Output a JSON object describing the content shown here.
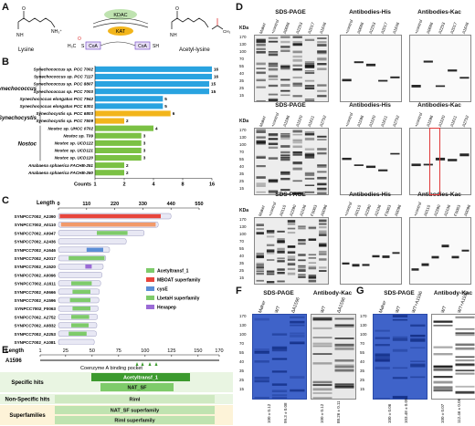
{
  "panels": [
    "A",
    "B",
    "C",
    "D",
    "E",
    "F",
    "G"
  ],
  "A": {
    "lysine_label": "Lysine",
    "acetyl_lysine_label": "Acetyl-lysine",
    "kdac": "KDAC",
    "kat": "KAT",
    "coa_left": "CoA",
    "coa_right": "CoA",
    "sh": "SH",
    "nh3": "NH₃⁺",
    "s_label": "S",
    "h3c": "H₃C",
    "nh_left": "N",
    "nh_right": "N",
    "h_left": "H",
    "h_right": "H",
    "o_left": "O",
    "o_right": "O",
    "o_acetyl": "O",
    "ch3": "CH₃",
    "star": "*"
  },
  "B": {
    "groups": [
      {
        "label": "Synechococcus",
        "start": 0,
        "end": 6
      },
      {
        "label": "Synechocystis",
        "start": 6,
        "end": 8
      },
      {
        "label": "Nostoc",
        "start": 8,
        "end": 13
      }
    ],
    "xaxis_label": "Counts",
    "ticks": [
      "1",
      "2",
      "4",
      "8",
      "16"
    ]
  },
  "chart_data": {
    "type": "bar",
    "categories": [
      "Synechococcus sp. PCC 7002",
      "Synechococcus sp. PCC 7117",
      "Synechococcus sp. PCC 8807",
      "Synechococcus sp. PCC 7003",
      "Synechococcus elongatus PCC 7942",
      "Synechococcus elongatus PCC 6301",
      "Synechocystis sp. PCC 6803",
      "Synechocystis sp. PCC 7509",
      "Nostoc sp. UHCC 0702",
      "Nostoc sp. T09",
      "Nostoc sp. UCD122",
      "Nostoc sp. UCD121",
      "Nostoc sp. UCD120",
      "Anabaena sphaerica FACHB-251",
      "Anabaena sphaerica FACHB-260"
    ],
    "values": [
      16,
      16,
      15,
      15,
      5,
      5,
      6,
      2,
      4,
      3,
      3,
      3,
      3,
      2,
      2
    ],
    "colors": [
      "#29a3e0",
      "#29a3e0",
      "#29a3e0",
      "#29a3e0",
      "#29a3e0",
      "#29a3e0",
      "#f2b51b",
      "#f2b51b",
      "#7bc144",
      "#7bc144",
      "#7bc144",
      "#7bc144",
      "#7bc144",
      "#7bc144",
      "#7bc144"
    ],
    "xlabel": "Counts",
    "xscale": "log2",
    "xlim": [
      1,
      16
    ]
  },
  "C": {
    "title": "Length",
    "ticks": [
      "0",
      "110",
      "220",
      "330",
      "440",
      "550"
    ],
    "max": 550,
    "proteins": [
      {
        "name": "SYNPCC7002_A2390",
        "len": 440,
        "doms": [
          {
            "s": 5,
            "e": 400,
            "c": "#e8453c"
          }
        ]
      },
      {
        "name": "SYNPCC7002_A0110",
        "len": 390,
        "doms": [
          {
            "s": 10,
            "e": 380,
            "c": "#f29a6a"
          }
        ]
      },
      {
        "name": "SYNPCC7002_A0947",
        "len": 335,
        "doms": [
          {
            "s": 150,
            "e": 270,
            "c": "#7ecb6a"
          }
        ]
      },
      {
        "name": "SYNPCC7002_A2436",
        "len": 265,
        "doms": []
      },
      {
        "name": "SYNPCC7002_A1646",
        "len": 200,
        "doms": [
          {
            "s": 110,
            "e": 175,
            "c": "#5b8ed6"
          }
        ]
      },
      {
        "name": "SYNPCC7002_A2017",
        "len": 185,
        "doms": [
          {
            "s": 40,
            "e": 180,
            "c": "#7ecb6a"
          }
        ]
      },
      {
        "name": "SYNPCC7002_A1520",
        "len": 175,
        "doms": [
          {
            "s": 105,
            "e": 130,
            "c": "#9b6bd6"
          }
        ]
      },
      {
        "name": "SYNPCC7002_A0096",
        "len": 170,
        "doms": []
      },
      {
        "name": "SYNPCC7002_A1611",
        "len": 165,
        "doms": [
          {
            "s": 50,
            "e": 130,
            "c": "#7ecb6a"
          }
        ]
      },
      {
        "name": "SYNPCC7002_A0666",
        "len": 160,
        "doms": [
          {
            "s": 55,
            "e": 125,
            "c": "#7ecb6a"
          }
        ]
      },
      {
        "name": "SYNPCC7002_A1596",
        "len": 158,
        "doms": [
          {
            "s": 45,
            "e": 125,
            "c": "#7ecb6a"
          }
        ]
      },
      {
        "name": "SYNPCC7002_F0063",
        "len": 155,
        "doms": [
          {
            "s": 55,
            "e": 125,
            "c": "#7ecb6a"
          }
        ]
      },
      {
        "name": "SYNPCC7002_A2752",
        "len": 152,
        "doms": [
          {
            "s": 50,
            "e": 120,
            "c": "#7ecb6a"
          }
        ]
      },
      {
        "name": "SYNPCC7002_A0832",
        "len": 150,
        "doms": [
          {
            "s": 50,
            "e": 118,
            "c": "#7ecb6a"
          }
        ]
      },
      {
        "name": "SYNPCC7002_A2253",
        "len": 148,
        "doms": [
          {
            "s": 40,
            "e": 110,
            "c": "#7ecb6a"
          }
        ]
      },
      {
        "name": "SYNPCC7002_A1081",
        "len": 140,
        "doms": []
      }
    ],
    "legend": [
      {
        "label": "Acetyltransf_1",
        "color": "#7ecb6a"
      },
      {
        "label": "MBOAT superfamily",
        "color": "#e8453c"
      },
      {
        "label": "cysE",
        "color": "#5b8ed6"
      },
      {
        "label": "LbetaH superfamily",
        "color": "#7ecb6a"
      },
      {
        "label": "Hexapep",
        "color": "#9b6bd6"
      }
    ]
  },
  "D": {
    "rows": [
      {
        "lanes": [
          "Maker",
          "+control",
          "A0666",
          "A2253",
          "A2017",
          "A1646"
        ]
      },
      {
        "lanes": [
          "Maker",
          "+control",
          "A1596",
          "A1520",
          "A1611",
          "A2752"
        ]
      },
      {
        "lanes": [
          "Maker",
          "+control",
          "A0110",
          "A2390",
          "A2436",
          "F0063",
          "A0096"
        ]
      }
    ],
    "titles": [
      "SDS-PAGE",
      "Antibodies-His",
      "Antibodies-Kac"
    ],
    "kda": "KDa",
    "markers": [
      "170",
      "130",
      "100",
      "70",
      "55",
      "40",
      "35",
      "25",
      "15"
    ]
  },
  "E": {
    "title": "Length",
    "ticks": [
      "1",
      "25",
      "50",
      "75",
      "100",
      "125",
      "150",
      "170"
    ],
    "protein": "A1596",
    "coa_label": "Coenzyme A binding pocket",
    "rows": [
      {
        "label": "Specific hits",
        "items": [
          "Acetyltransf_1",
          "NAT_SF"
        ]
      },
      {
        "label": "Non-Specific hits",
        "items": [
          "RimI"
        ]
      },
      {
        "label": "Superfamilies",
        "items": [
          "NAT_SF superfamily",
          "RimI superfamily"
        ]
      }
    ]
  },
  "F": {
    "title_left": "SDS-PAGE",
    "title_right": "Antibody-Kac",
    "lanes_left": [
      "Maker",
      "WT",
      "ΔA1596"
    ],
    "lanes_right": [
      "WT",
      "ΔA1596"
    ],
    "markers": [
      "170",
      "130",
      "100",
      "70",
      "55",
      "40",
      "35",
      "25",
      "15"
    ],
    "values_left": [
      "100 ± 0.12",
      "99.3 ± 0.08"
    ],
    "values_right": [
      "100 ± 0.12",
      "88.26 ± 0.11"
    ]
  },
  "G": {
    "title_left": "SDS-PAGE",
    "title_right": "Antibody-Kac",
    "lanes_left": [
      "Maker",
      "WT",
      "WT+A1596"
    ],
    "lanes_right": [
      "WT",
      "WT+A1596"
    ],
    "markers": [
      "170",
      "130",
      "100",
      "70",
      "55",
      "40",
      "35",
      "25",
      "15"
    ],
    "values_left": [
      "100 ± 0.06",
      "103.48 ± 0.09"
    ],
    "values_right": [
      "100 ± 0.07",
      "112.46 ± 0.06"
    ]
  }
}
